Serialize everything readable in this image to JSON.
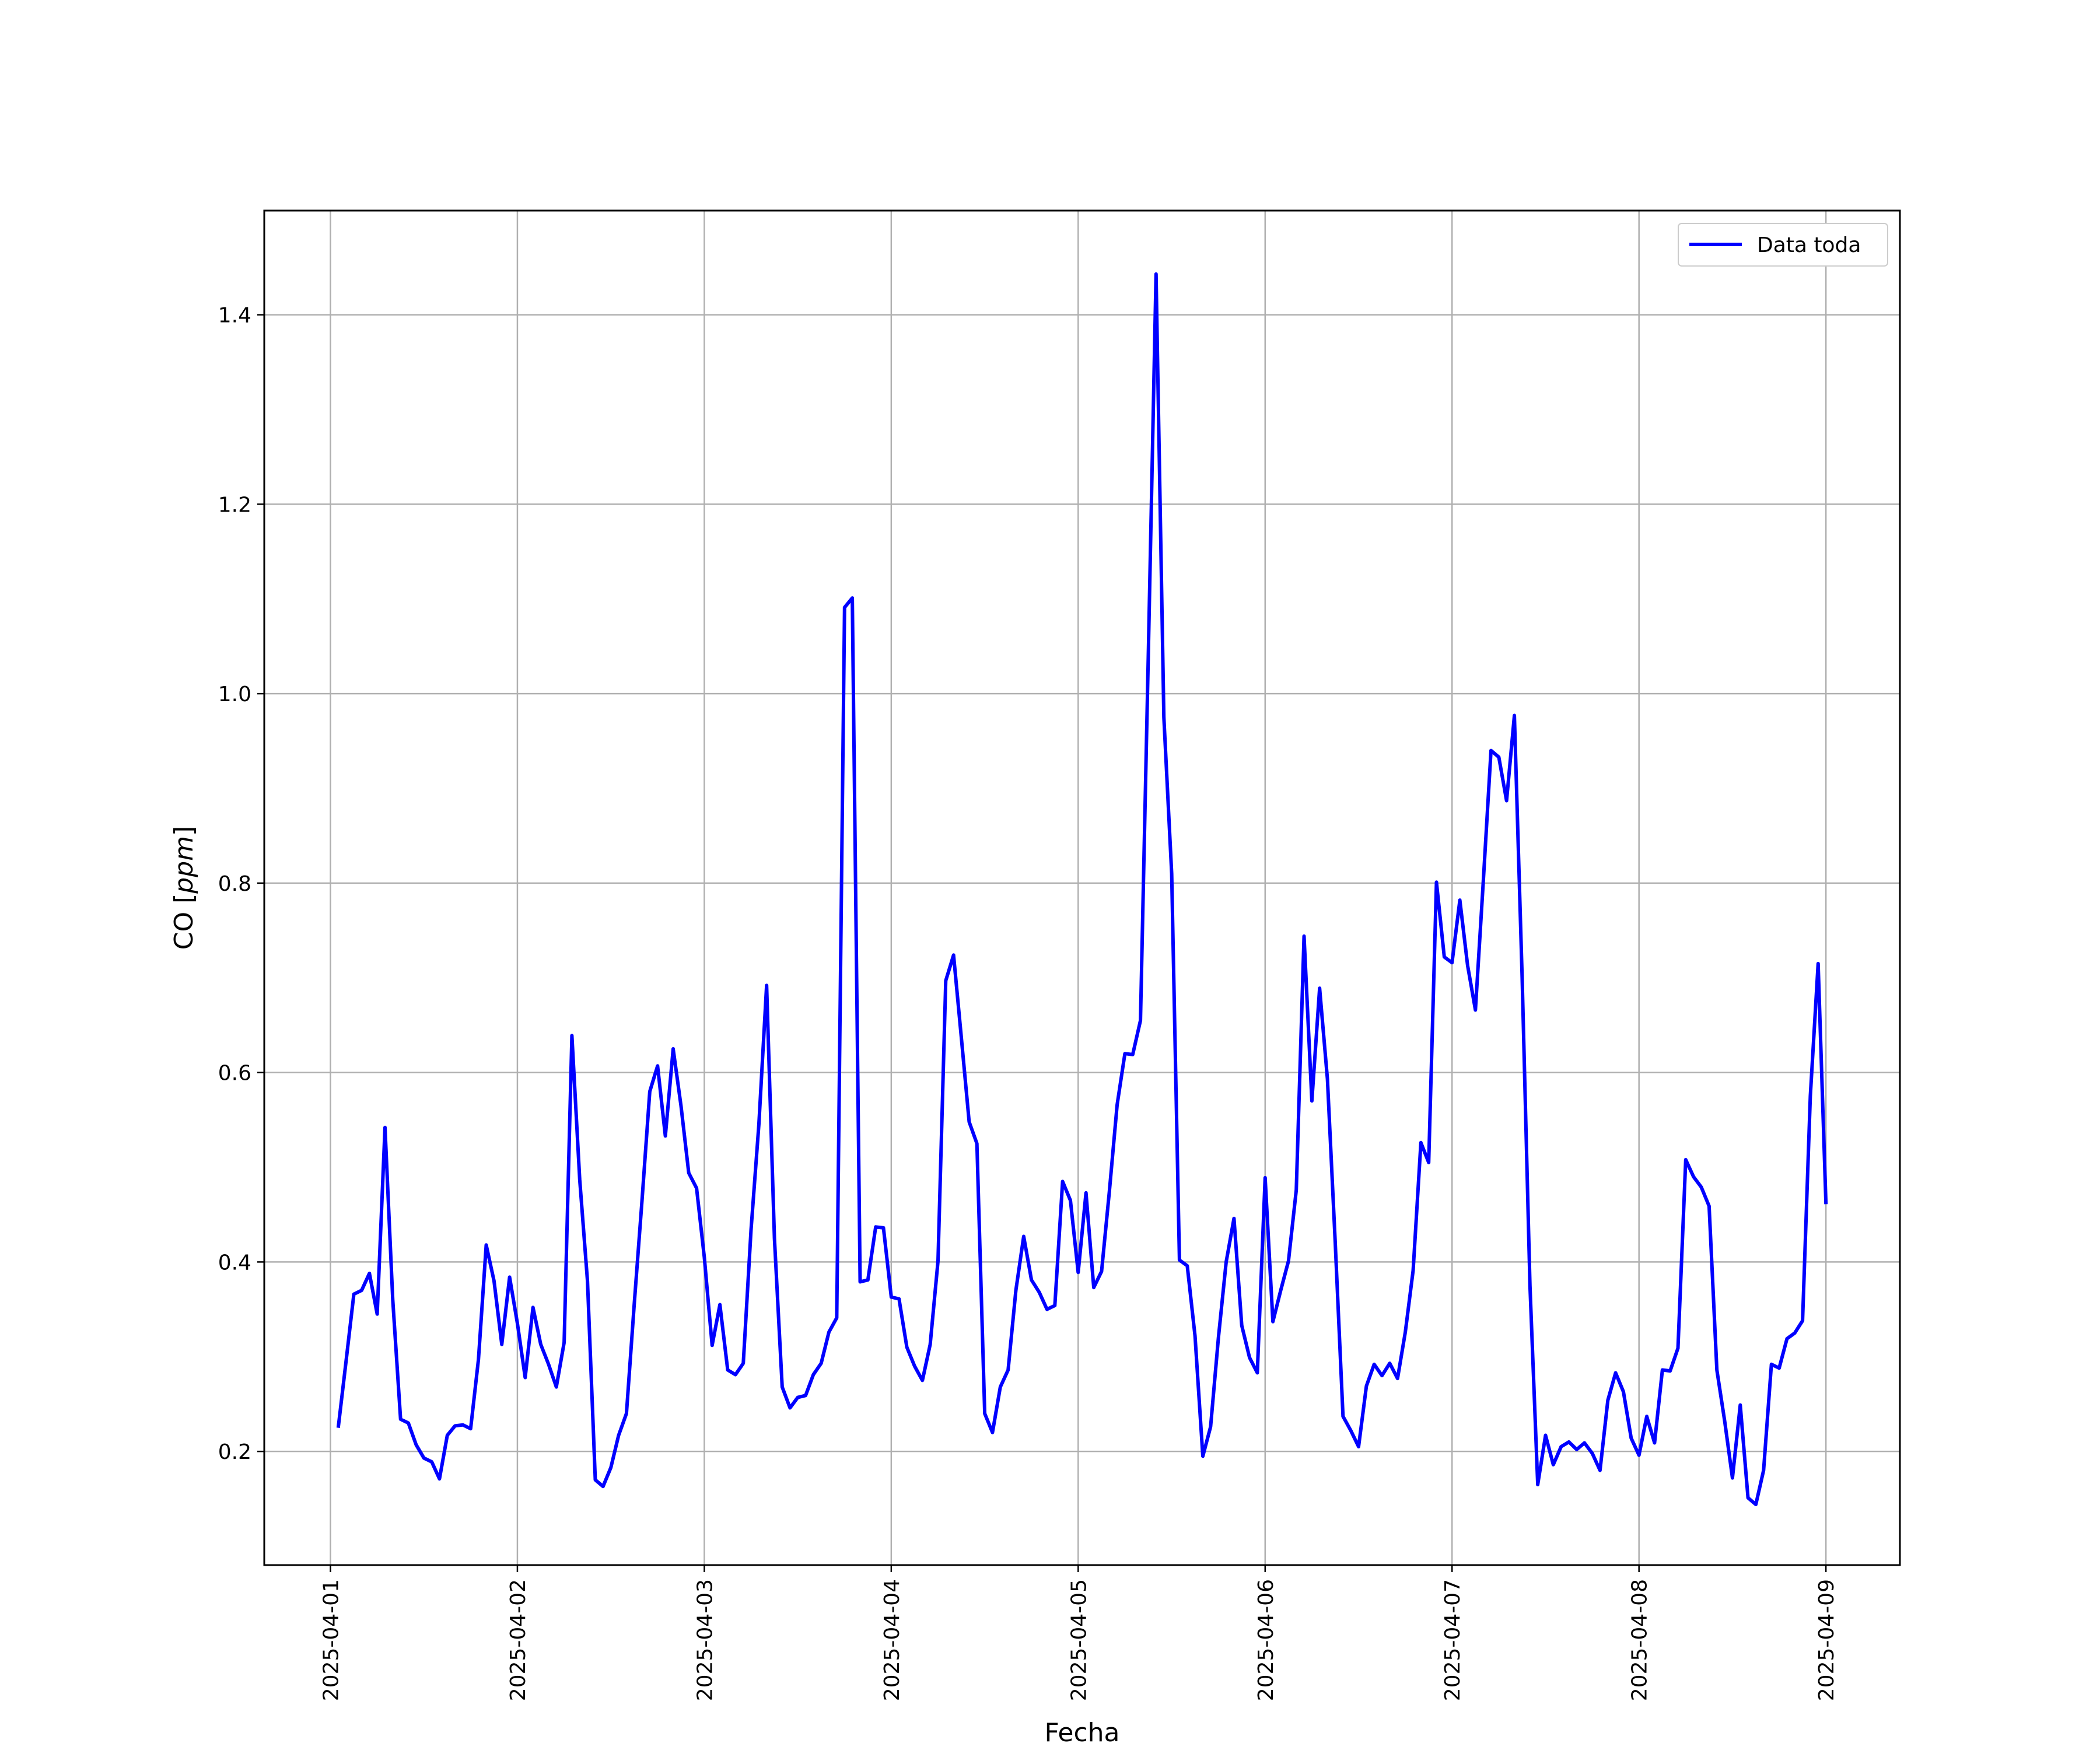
{
  "chart_data": {
    "type": "line",
    "xlabel": "Fecha",
    "ylabel_prefix": "CO [",
    "ylabel_unit": "ppm",
    "ylabel_suffix": "]",
    "ylim": [
      0.08,
      1.51
    ],
    "xlim": [
      "2025-03-31 15:30",
      "2025-04-09 09:30"
    ],
    "y_ticks": [
      0.2,
      0.4,
      0.6,
      0.8,
      1.0,
      1.2,
      1.4
    ],
    "y_tick_labels": [
      "0.2",
      "0.4",
      "0.6",
      "0.8",
      "1.0",
      "1.2",
      "1.4"
    ],
    "x_ticks": [
      "2025-04-01",
      "2025-04-02",
      "2025-04-03",
      "2025-04-04",
      "2025-04-05",
      "2025-04-06",
      "2025-04-07",
      "2025-04-08",
      "2025-04-09"
    ],
    "grid": true,
    "legend_position": "top-right",
    "series": [
      {
        "name": "Data toda",
        "color": "#0000ff",
        "x": [
          "2025-04-01 01:00",
          "2025-04-01 02:00",
          "2025-04-01 03:00",
          "2025-04-01 04:00",
          "2025-04-01 05:00",
          "2025-04-01 06:00",
          "2025-04-01 07:00",
          "2025-04-01 08:00",
          "2025-04-01 09:00",
          "2025-04-01 10:00",
          "2025-04-01 11:00",
          "2025-04-01 12:00",
          "2025-04-01 13:00",
          "2025-04-01 14:00",
          "2025-04-01 15:00",
          "2025-04-01 16:00",
          "2025-04-01 17:00",
          "2025-04-01 18:00",
          "2025-04-01 19:00",
          "2025-04-01 20:00",
          "2025-04-01 21:00",
          "2025-04-01 22:00",
          "2025-04-01 23:00",
          "2025-04-02 00:00",
          "2025-04-02 01:00",
          "2025-04-02 02:00",
          "2025-04-02 03:00",
          "2025-04-02 04:00",
          "2025-04-02 05:00",
          "2025-04-02 06:00",
          "2025-04-02 07:00",
          "2025-04-02 08:00",
          "2025-04-02 09:00",
          "2025-04-02 10:00",
          "2025-04-02 11:00",
          "2025-04-02 12:00",
          "2025-04-02 13:00",
          "2025-04-02 14:00",
          "2025-04-02 15:00",
          "2025-04-02 16:00",
          "2025-04-02 17:00",
          "2025-04-02 18:00",
          "2025-04-02 19:00",
          "2025-04-02 20:00",
          "2025-04-02 21:00",
          "2025-04-02 22:00",
          "2025-04-02 23:00",
          "2025-04-03 00:00",
          "2025-04-03 01:00",
          "2025-04-03 02:00",
          "2025-04-03 03:00",
          "2025-04-03 04:00",
          "2025-04-03 05:00",
          "2025-04-03 06:00",
          "2025-04-03 07:00",
          "2025-04-03 08:00",
          "2025-04-03 09:00",
          "2025-04-03 10:00",
          "2025-04-03 11:00",
          "2025-04-03 12:00",
          "2025-04-03 13:00",
          "2025-04-03 14:00",
          "2025-04-03 15:00",
          "2025-04-03 16:00",
          "2025-04-03 17:00",
          "2025-04-03 18:00",
          "2025-04-03 19:00",
          "2025-04-03 20:00",
          "2025-04-03 21:00",
          "2025-04-03 22:00",
          "2025-04-03 23:00",
          "2025-04-04 00:00",
          "2025-04-04 01:00",
          "2025-04-04 02:00",
          "2025-04-04 03:00",
          "2025-04-04 04:00",
          "2025-04-04 05:00",
          "2025-04-04 06:00",
          "2025-04-04 07:00",
          "2025-04-04 08:00",
          "2025-04-04 09:00",
          "2025-04-04 10:00",
          "2025-04-04 11:00",
          "2025-04-04 12:00",
          "2025-04-04 13:00",
          "2025-04-04 14:00",
          "2025-04-04 15:00",
          "2025-04-04 16:00",
          "2025-04-04 17:00",
          "2025-04-04 18:00",
          "2025-04-04 19:00",
          "2025-04-04 20:00",
          "2025-04-04 21:00",
          "2025-04-04 22:00",
          "2025-04-04 23:00",
          "2025-04-05 00:00",
          "2025-04-05 01:00",
          "2025-04-05 02:00",
          "2025-04-05 03:00",
          "2025-04-05 04:00",
          "2025-04-05 05:00",
          "2025-04-05 06:00",
          "2025-04-05 07:00",
          "2025-04-05 08:00",
          "2025-04-05 09:00",
          "2025-04-05 10:00",
          "2025-04-05 11:00",
          "2025-04-05 12:00",
          "2025-04-05 13:00",
          "2025-04-05 14:00",
          "2025-04-05 15:00",
          "2025-04-05 16:00",
          "2025-04-05 17:00",
          "2025-04-05 18:00",
          "2025-04-05 19:00",
          "2025-04-05 20:00",
          "2025-04-05 21:00",
          "2025-04-05 22:00",
          "2025-04-05 23:00",
          "2025-04-06 00:00",
          "2025-04-06 01:00",
          "2025-04-06 02:00",
          "2025-04-06 03:00",
          "2025-04-06 04:00",
          "2025-04-06 05:00",
          "2025-04-06 06:00",
          "2025-04-06 07:00",
          "2025-04-06 08:00",
          "2025-04-06 09:00",
          "2025-04-06 10:00",
          "2025-04-06 11:00",
          "2025-04-06 12:00",
          "2025-04-06 13:00",
          "2025-04-06 14:00",
          "2025-04-06 15:00",
          "2025-04-06 16:00",
          "2025-04-06 17:00",
          "2025-04-06 18:00",
          "2025-04-06 19:00",
          "2025-04-06 20:00",
          "2025-04-06 21:00",
          "2025-04-06 22:00",
          "2025-04-06 23:00",
          "2025-04-07 00:00",
          "2025-04-07 01:00",
          "2025-04-07 02:00",
          "2025-04-07 03:00",
          "2025-04-07 04:00",
          "2025-04-07 05:00",
          "2025-04-07 06:00",
          "2025-04-07 07:00",
          "2025-04-07 08:00",
          "2025-04-07 09:00",
          "2025-04-07 10:00",
          "2025-04-07 11:00",
          "2025-04-07 12:00",
          "2025-04-07 13:00",
          "2025-04-07 14:00",
          "2025-04-07 15:00",
          "2025-04-07 16:00",
          "2025-04-07 17:00",
          "2025-04-07 18:00",
          "2025-04-07 19:00",
          "2025-04-07 20:00",
          "2025-04-07 21:00",
          "2025-04-07 22:00",
          "2025-04-07 23:00",
          "2025-04-08 00:00",
          "2025-04-08 01:00",
          "2025-04-08 02:00",
          "2025-04-08 03:00",
          "2025-04-08 04:00",
          "2025-04-08 05:00",
          "2025-04-08 06:00",
          "2025-04-08 07:00",
          "2025-04-08 08:00",
          "2025-04-08 09:00",
          "2025-04-08 10:00",
          "2025-04-08 11:00",
          "2025-04-08 12:00",
          "2025-04-08 13:00",
          "2025-04-08 14:00",
          "2025-04-08 15:00",
          "2025-04-08 16:00",
          "2025-04-08 17:00",
          "2025-04-08 18:00",
          "2025-04-08 19:00",
          "2025-04-08 20:00",
          "2025-04-08 21:00",
          "2025-04-08 22:00",
          "2025-04-08 23:00",
          "2025-04-09 00:00"
        ],
        "values": [
          0.225,
          0.295,
          0.366,
          0.37,
          0.388,
          0.345,
          0.542,
          0.36,
          0.234,
          0.23,
          0.207,
          0.193,
          0.189,
          0.171,
          0.217,
          0.227,
          0.228,
          0.224,
          0.297,
          0.418,
          0.38,
          0.313,
          0.384,
          0.335,
          0.278,
          0.352,
          0.313,
          0.292,
          0.268,
          0.315,
          0.639,
          0.487,
          0.38,
          0.17,
          0.163,
          0.183,
          0.217,
          0.24,
          0.355,
          0.465,
          0.58,
          0.607,
          0.533,
          0.625,
          0.565,
          0.494,
          0.478,
          0.405,
          0.312,
          0.355,
          0.286,
          0.281,
          0.293,
          0.434,
          0.545,
          0.692,
          0.425,
          0.268,
          0.246,
          0.257,
          0.259,
          0.281,
          0.293,
          0.326,
          0.341,
          1.091,
          1.101,
          0.379,
          0.381,
          0.437,
          0.436,
          0.363,
          0.361,
          0.31,
          0.29,
          0.275,
          0.313,
          0.401,
          0.697,
          0.724,
          0.637,
          0.548,
          0.525,
          0.24,
          0.22,
          0.268,
          0.286,
          0.37,
          0.427,
          0.381,
          0.368,
          0.35,
          0.354,
          0.485,
          0.465,
          0.389,
          0.473,
          0.373,
          0.39,
          0.474,
          0.566,
          0.62,
          0.619,
          0.655,
          1.04,
          1.443,
          0.975,
          0.81,
          0.402,
          0.396,
          0.322,
          0.195,
          0.226,
          0.32,
          0.4,
          0.446,
          0.333,
          0.299,
          0.283,
          0.489,
          0.337,
          0.37,
          0.401,
          0.476,
          0.744,
          0.57,
          0.689,
          0.593,
          0.42,
          0.237,
          0.222,
          0.205,
          0.269,
          0.292,
          0.28,
          0.293,
          0.277,
          0.326,
          0.391,
          0.526,
          0.505,
          0.801,
          0.722,
          0.716,
          0.782,
          0.713,
          0.666,
          0.8,
          0.94,
          0.933,
          0.887,
          0.977,
          0.7,
          0.375,
          0.165,
          0.217,
          0.186,
          0.205,
          0.21,
          0.202,
          0.209,
          0.198,
          0.18,
          0.254,
          0.283,
          0.263,
          0.214,
          0.196,
          0.237,
          0.209,
          0.286,
          0.285,
          0.309,
          0.508,
          0.49,
          0.479,
          0.459,
          0.286,
          0.232,
          0.172,
          0.249,
          0.151,
          0.144,
          0.18,
          0.292,
          0.288,
          0.319,
          0.325,
          0.338,
          0.575,
          0.715,
          0.461
        ]
      }
    ]
  }
}
